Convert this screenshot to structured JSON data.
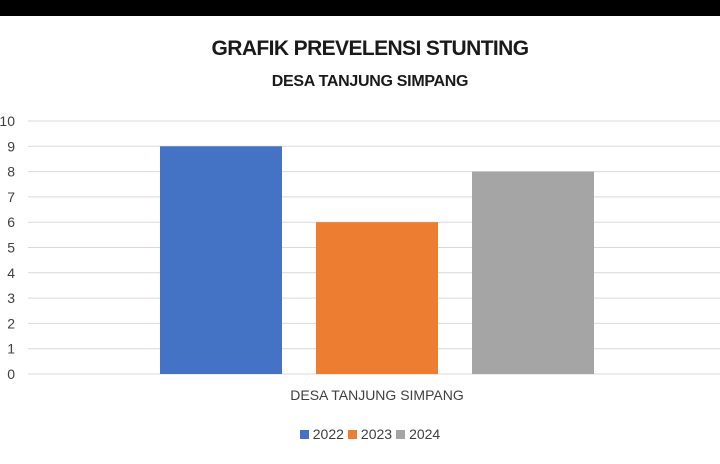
{
  "chart_data": {
    "type": "bar",
    "title": "GRAFIK PREVELENSI STUNTING",
    "subtitle": "DESA TANJUNG SIMPANG",
    "categories": [
      "DESA TANJUNG SIMPANG"
    ],
    "series": [
      {
        "name": "2022",
        "values": [
          9
        ],
        "color": "#4472C4"
      },
      {
        "name": "2023",
        "values": [
          6
        ],
        "color": "#ED7D31"
      },
      {
        "name": "2024",
        "values": [
          8
        ],
        "color": "#A5A5A5"
      }
    ],
    "ylim": [
      0,
      10
    ],
    "yticks": [
      "0",
      "1",
      "2",
      "3",
      "4",
      "5",
      "6",
      "7",
      "8",
      "9",
      "10"
    ],
    "grid": true,
    "legend": "bottom"
  }
}
